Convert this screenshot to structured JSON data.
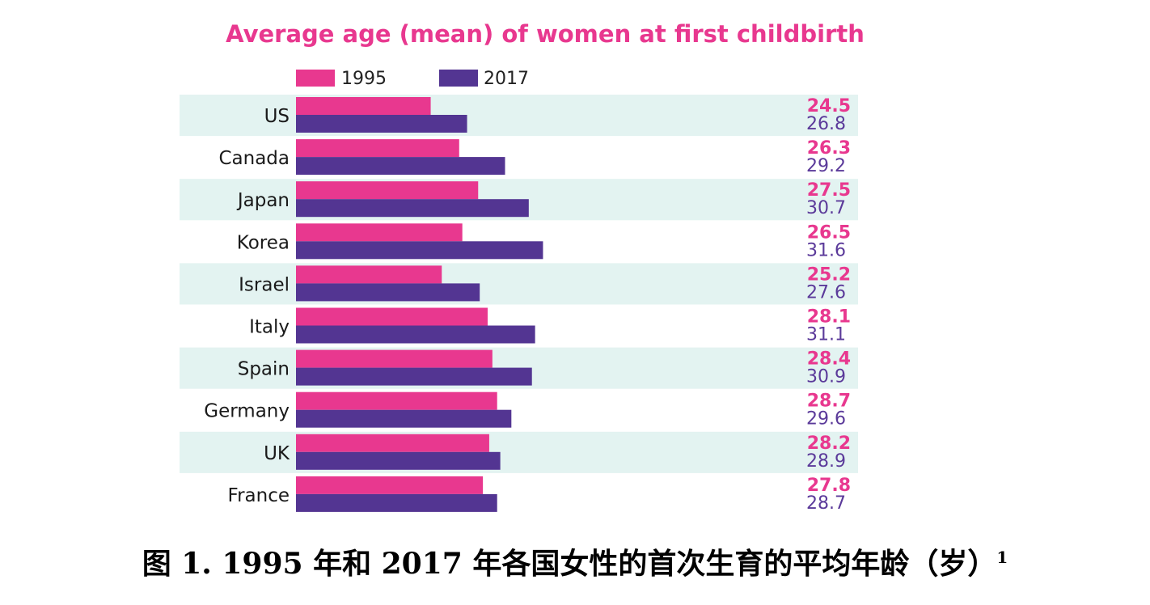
{
  "chart_data": {
    "type": "bar",
    "orientation": "horizontal",
    "title": "Average age (mean) of women at first childbirth",
    "categories": [
      "US",
      "Canada",
      "Japan",
      "Korea",
      "Israel",
      "Italy",
      "Spain",
      "Germany",
      "UK",
      "France"
    ],
    "series": [
      {
        "name": "1995",
        "color": "#e8388f",
        "values": [
          24.5,
          26.3,
          27.5,
          26.5,
          25.2,
          28.1,
          28.4,
          28.7,
          28.2,
          27.8
        ]
      },
      {
        "name": "2017",
        "color": "#533592",
        "values": [
          26.8,
          29.2,
          30.7,
          31.6,
          27.6,
          31.1,
          30.9,
          29.6,
          28.9,
          28.7
        ]
      }
    ],
    "value_labels": {
      "1995": [
        "24.5",
        "26.3",
        "27.5",
        "26.5",
        "25.2",
        "28.1",
        "28.4",
        "28.7",
        "28.2",
        "27.8"
      ],
      "2017": [
        "26.8",
        "29.2",
        "30.7",
        "31.6",
        "27.6",
        "31.1",
        "30.9",
        "29.6",
        "28.9",
        "28.7"
      ]
    },
    "legend_position": "top-left",
    "row_band_color": "#e3f3f1",
    "grid": false
  },
  "caption": {
    "text": "图 1. 1995 年和 2017 年各国女性的首次生育的平均年龄（岁）",
    "footnote": "1"
  }
}
